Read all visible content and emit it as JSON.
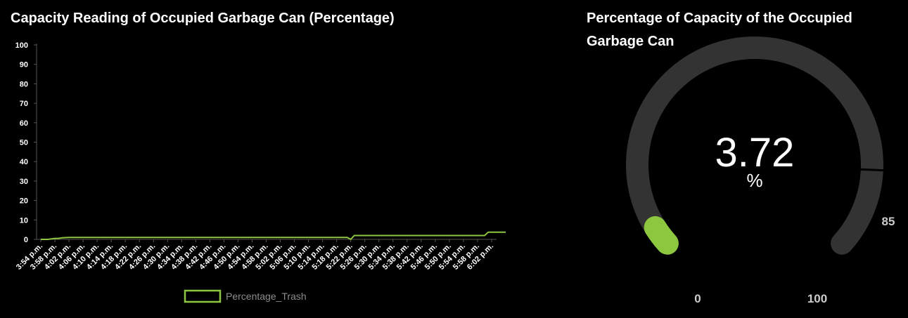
{
  "line_panel": {
    "title": "Capacity Reading of Occupied Garbage Can (Percentage)"
  },
  "gauge_panel": {
    "title": "Percentage of Capacity of the Occupied Garbage Can"
  },
  "colors": {
    "background": "#000000",
    "series": "#8dc63f",
    "gauge_track": "#333333",
    "axis_text": "#ffffff",
    "legend_text": "#8c8c8c"
  },
  "chart_data": [
    {
      "type": "line",
      "title": "Capacity Reading of Occupied Garbage Can (Percentage)",
      "xlabel": "",
      "ylabel": "",
      "ylim": [
        0,
        100
      ],
      "yticks": [
        0,
        10,
        20,
        30,
        40,
        50,
        60,
        70,
        80,
        90,
        100
      ],
      "x_tick_labels": [
        "3:54 p.m.",
        "3:58 p.m.",
        "4:02 p.m.",
        "4:06 p.m.",
        "4:10 p.m.",
        "4:14 p.m.",
        "4:18 p.m.",
        "4:22 p.m.",
        "4:26 p.m.",
        "4:30 p.m.",
        "4:34 p.m.",
        "4:38 p.m.",
        "4:42 p.m.",
        "4:46 p.m.",
        "4:50 p.m.",
        "4:54 p.m.",
        "4:58 p.m.",
        "5:02 p.m.",
        "5:06 p.m.",
        "5:10 p.m.",
        "5:14 p.m.",
        "5:18 p.m.",
        "5:22 p.m.",
        "5:26 p.m.",
        "5:30 p.m.",
        "5:34 p.m.",
        "5:38 p.m.",
        "5:42 p.m.",
        "5:46 p.m.",
        "5:50 p.m.",
        "5:54 p.m.",
        "5:58 p.m.",
        "6:02 p.m."
      ],
      "legend": "bottom-center",
      "grid": false,
      "series": [
        {
          "name": "Percentage_Trash",
          "x": [
            "3:54 p.m.",
            "3:56 p.m.",
            "3:58 p.m.",
            "3:59 p.m.",
            "4:00 p.m.",
            "4:02 p.m.",
            "4:10 p.m.",
            "4:30 p.m.",
            "5:00 p.m.",
            "5:20 p.m.",
            "5:21 p.m.",
            "5:22 p.m.",
            "5:23 p.m.",
            "5:24 p.m.",
            "5:30 p.m.",
            "5:40 p.m.",
            "5:50 p.m.",
            "6:00 p.m.",
            "6:01 p.m.",
            "6:02 p.m.",
            "6:06 p.m."
          ],
          "values": [
            0,
            0,
            0.5,
            0.5,
            0.8,
            1,
            1,
            1,
            1,
            1,
            1,
            0,
            2,
            2,
            2,
            2,
            2,
            2,
            3.7,
            3.7,
            3.72
          ]
        }
      ]
    },
    {
      "type": "gauge",
      "title": "Percentage of Capacity of the Occupied Garbage Can",
      "value": 3.72,
      "value_label": "3.72",
      "unit": "%",
      "min": 0,
      "max": 100,
      "threshold": 85,
      "labels": [
        "0",
        "85",
        "100"
      ]
    }
  ]
}
